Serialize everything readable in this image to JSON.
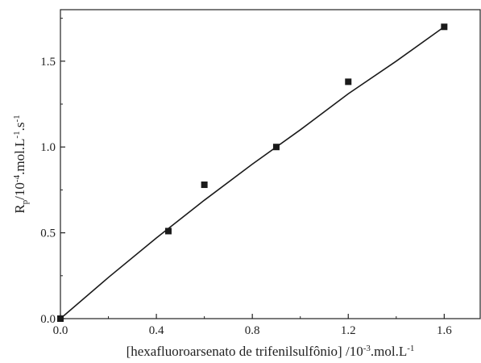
{
  "chart_data": {
    "type": "scatter",
    "title": "",
    "xlabel": {
      "parts": [
        {
          "text": "[hexafluoroarsenato de trifenilsulfônio] /10",
          "shift": ""
        },
        {
          "text": "-3",
          "shift": "super"
        },
        {
          "text": ".mol.L",
          "shift": ""
        },
        {
          "text": "-1",
          "shift": "super"
        }
      ]
    },
    "ylabel": {
      "parts": [
        {
          "text": "R",
          "shift": ""
        },
        {
          "text": "p",
          "shift": "sub"
        },
        {
          "text": "/10",
          "shift": ""
        },
        {
          "text": "-4",
          "shift": "super"
        },
        {
          "text": ".mol.L",
          "shift": ""
        },
        {
          "text": "-1",
          "shift": "super"
        },
        {
          "text": ".s",
          "shift": ""
        },
        {
          "text": "-1",
          "shift": "super"
        }
      ]
    },
    "xlim": [
      0.0,
      1.75
    ],
    "ylim": [
      0.0,
      1.8
    ],
    "xticks": [
      0.0,
      0.4,
      0.8,
      1.2,
      1.6
    ],
    "xtick_labels": [
      "0.0",
      "0.4",
      "0.8",
      "1.2",
      "1.6"
    ],
    "yticks": [
      0.0,
      0.5,
      1.0,
      1.5
    ],
    "ytick_labels": [
      "0.0",
      "0.5",
      "1.0",
      "1.5"
    ],
    "grid": false,
    "series": [
      {
        "kind": "points",
        "marker": "square",
        "color": "#1a1a1a",
        "x": [
          0.0,
          0.45,
          0.6,
          0.9,
          1.2,
          1.6
        ],
        "y": [
          0.0,
          0.51,
          0.78,
          1.0,
          1.38,
          1.7
        ]
      },
      {
        "kind": "fit-line",
        "color": "#1a1a1a",
        "x": [
          0.0,
          0.2,
          0.4,
          0.6,
          0.8,
          1.0,
          1.2,
          1.4,
          1.6
        ],
        "y": [
          0.0,
          0.24,
          0.47,
          0.69,
          0.9,
          1.1,
          1.31,
          1.5,
          1.7
        ]
      }
    ]
  }
}
